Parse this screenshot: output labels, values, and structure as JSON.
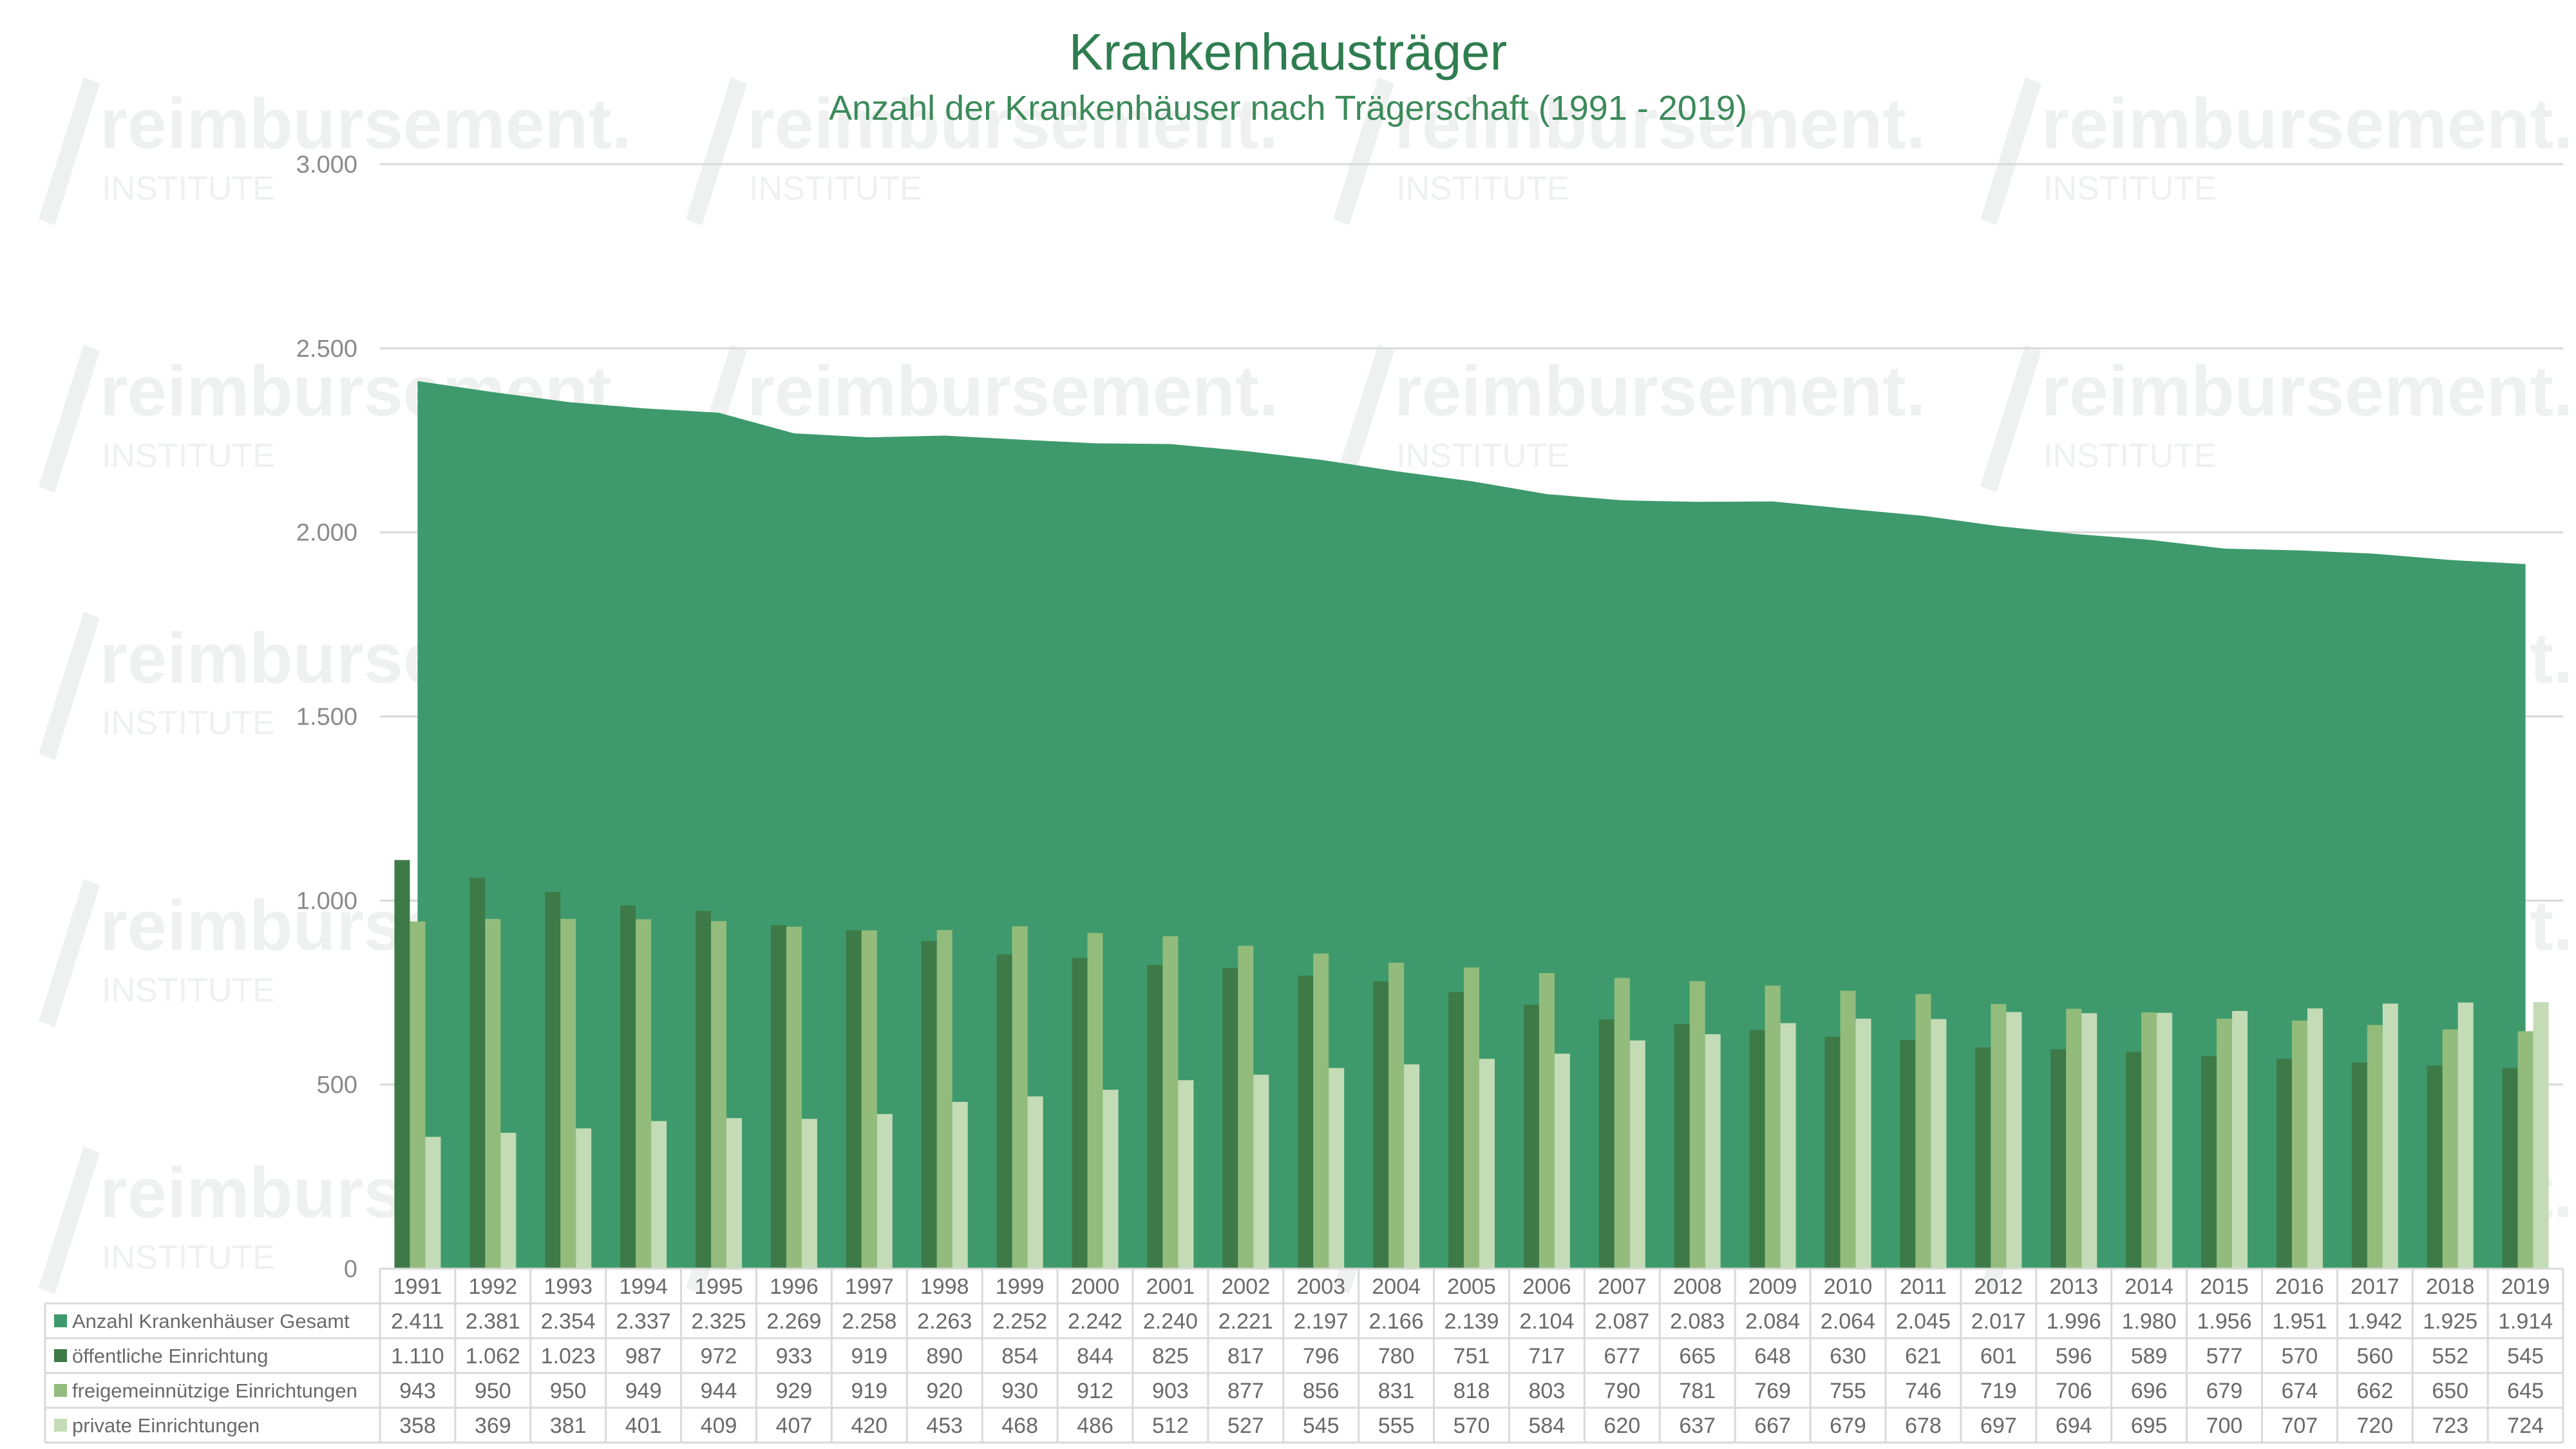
{
  "watermark": {
    "brand": "reimbursement.",
    "sub": "INSTITUTE"
  },
  "colors": {
    "gesamt": "#3e9a6c",
    "oeffentlich": "#3d7a47",
    "freigemeinnuetzig": "#93bc7c",
    "privat": "#c4dcb6",
    "grid": "#d9d9d9",
    "title": "#2e7d4f"
  },
  "chart_data": {
    "type": "bar",
    "title": "Krankenhausträger",
    "subtitle": "Anzahl der Krankenhäuser nach Trägerschaft (1991 - 2019)",
    "xlabel": "",
    "ylabel": "",
    "ylim": [
      0,
      3000
    ],
    "yticks": [
      0,
      500,
      1000,
      1500,
      2000,
      2500,
      3000
    ],
    "ytick_labels": [
      "0",
      "500",
      "1.000",
      "1.500",
      "2.000",
      "2.500",
      "3.000"
    ],
    "grid": true,
    "legend": "data-table-below",
    "categories": [
      "1991",
      "1992",
      "1993",
      "1994",
      "1995",
      "1996",
      "1997",
      "1998",
      "1999",
      "2000",
      "2001",
      "2002",
      "2003",
      "2004",
      "2005",
      "2006",
      "2007",
      "2008",
      "2009",
      "2010",
      "2011",
      "2012",
      "2013",
      "2014",
      "2015",
      "2016",
      "2017",
      "2018",
      "2019"
    ],
    "series": [
      {
        "name": "Anzahl Krankenhäuser Gesamt",
        "type": "area",
        "color": "#3e9a6c",
        "values": [
          2411,
          2381,
          2354,
          2337,
          2325,
          2269,
          2258,
          2263,
          2252,
          2242,
          2240,
          2221,
          2197,
          2166,
          2139,
          2104,
          2087,
          2083,
          2084,
          2064,
          2045,
          2017,
          1996,
          1980,
          1956,
          1951,
          1942,
          1925,
          1914
        ],
        "labels": [
          "2.411",
          "2.381",
          "2.354",
          "2.337",
          "2.325",
          "2.269",
          "2.258",
          "2.263",
          "2.252",
          "2.242",
          "2.240",
          "2.221",
          "2.197",
          "2.166",
          "2.139",
          "2.104",
          "2.087",
          "2.083",
          "2.084",
          "2.064",
          "2.045",
          "2.017",
          "1.996",
          "1.980",
          "1.956",
          "1.951",
          "1.942",
          "1.925",
          "1.914"
        ]
      },
      {
        "name": "öffentliche Einrichtung",
        "type": "bar",
        "color": "#3d7a47",
        "values": [
          1110,
          1062,
          1023,
          987,
          972,
          933,
          919,
          890,
          854,
          844,
          825,
          817,
          796,
          780,
          751,
          717,
          677,
          665,
          648,
          630,
          621,
          601,
          596,
          589,
          577,
          570,
          560,
          552,
          545
        ],
        "labels": [
          "1.110",
          "1.062",
          "1.023",
          "987",
          "972",
          "933",
          "919",
          "890",
          "854",
          "844",
          "825",
          "817",
          "796",
          "780",
          "751",
          "717",
          "677",
          "665",
          "648",
          "630",
          "621",
          "601",
          "596",
          "589",
          "577",
          "570",
          "560",
          "552",
          "545"
        ]
      },
      {
        "name": "freigemeinnützige Einrichtungen",
        "type": "bar",
        "color": "#93bc7c",
        "values": [
          943,
          950,
          950,
          949,
          944,
          929,
          919,
          920,
          930,
          912,
          903,
          877,
          856,
          831,
          818,
          803,
          790,
          781,
          769,
          755,
          746,
          719,
          706,
          696,
          679,
          674,
          662,
          650,
          645
        ],
        "labels": [
          "943",
          "950",
          "950",
          "949",
          "944",
          "929",
          "919",
          "920",
          "930",
          "912",
          "903",
          "877",
          "856",
          "831",
          "818",
          "803",
          "790",
          "781",
          "769",
          "755",
          "746",
          "719",
          "706",
          "696",
          "679",
          "674",
          "662",
          "650",
          "645"
        ]
      },
      {
        "name": "private Einrichtungen",
        "type": "bar",
        "color": "#c4dcb6",
        "values": [
          358,
          369,
          381,
          401,
          409,
          407,
          420,
          453,
          468,
          486,
          512,
          527,
          545,
          555,
          570,
          584,
          620,
          637,
          667,
          679,
          678,
          697,
          694,
          695,
          700,
          707,
          720,
          723,
          724
        ],
        "labels": [
          "358",
          "369",
          "381",
          "401",
          "409",
          "407",
          "420",
          "453",
          "468",
          "486",
          "512",
          "527",
          "545",
          "555",
          "570",
          "584",
          "620",
          "637",
          "667",
          "679",
          "678",
          "697",
          "694",
          "695",
          "700",
          "707",
          "720",
          "723",
          "724"
        ]
      }
    ]
  }
}
